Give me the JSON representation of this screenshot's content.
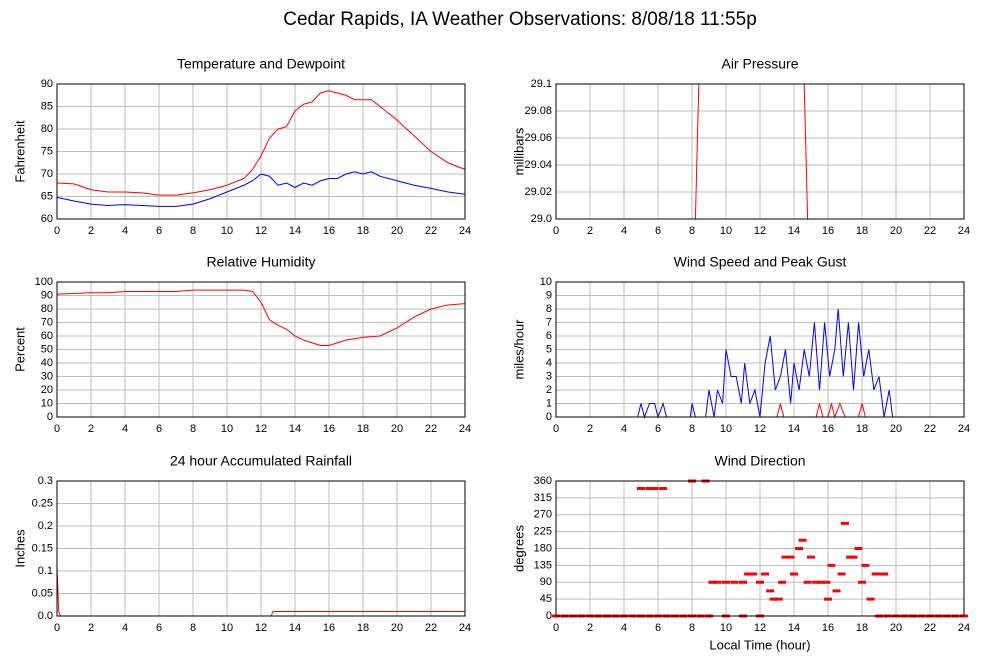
{
  "title": "Cedar Rapids, IA Weather Observations: 8/08/18 11:55p",
  "chart_data": [
    {
      "type": "line",
      "title": "Temperature and Dewpoint",
      "ylabel": "Fahrenheit",
      "xlim": [
        0,
        24
      ],
      "xticks": [
        0,
        2,
        4,
        6,
        8,
        10,
        12,
        14,
        16,
        18,
        20,
        22,
        24
      ],
      "ylim": [
        60,
        90
      ],
      "yticks": [
        60,
        65,
        70,
        75,
        80,
        85,
        90
      ],
      "grid": true,
      "series": [
        {
          "color": "#ff0000",
          "x": [
            0,
            1,
            2,
            3,
            4,
            5,
            6,
            7,
            8,
            9,
            10,
            11,
            11.5,
            12,
            12.5,
            13,
            13.5,
            14,
            14.5,
            15,
            15.5,
            16,
            16.5,
            17,
            17.5,
            18,
            18.5,
            19,
            20,
            21,
            22,
            23,
            24
          ],
          "values": [
            68,
            67.8,
            66.5,
            66,
            66,
            65.8,
            65.3,
            65.3,
            65.8,
            66.5,
            67.5,
            69,
            71,
            74,
            78,
            80,
            80.5,
            84,
            85.5,
            86,
            88,
            88.5,
            88,
            87.5,
            86.5,
            86.5,
            86.5,
            85,
            82,
            78.5,
            75,
            72.5,
            71
          ]
        },
        {
          "color": "#0000ff",
          "x": [
            0,
            1,
            2,
            3,
            4,
            5,
            6,
            7,
            8,
            9,
            10,
            11,
            11.5,
            12,
            12.5,
            13,
            13.5,
            14,
            14.5,
            15,
            15.5,
            16,
            16.5,
            17,
            17.5,
            18,
            18.5,
            19,
            20,
            21,
            22,
            23,
            24
          ],
          "values": [
            64.8,
            64,
            63.3,
            63,
            63.2,
            63,
            62.8,
            62.8,
            63.3,
            64.5,
            66,
            67.5,
            68.5,
            70,
            69.5,
            67.5,
            68,
            67,
            68,
            67.5,
            68.5,
            69,
            69,
            70,
            70.5,
            70,
            70.5,
            69.5,
            68.5,
            67.5,
            66.8,
            66,
            65.5
          ]
        }
      ]
    },
    {
      "type": "line",
      "title": "Air Pressure",
      "ylabel": "millibars",
      "xlim": [
        0,
        24
      ],
      "xticks": [
        0,
        2,
        4,
        6,
        8,
        10,
        12,
        14,
        16,
        18,
        20,
        22,
        24
      ],
      "ylim": [
        29,
        29.1
      ],
      "yticks": [
        {
          "value": 29,
          "label": "29.0"
        },
        29.02,
        29.04,
        29.06,
        29.08,
        29.1
      ],
      "grid": true,
      "series": [
        {
          "color": "#ff0000",
          "x": [
            0,
            8.2,
            8.4,
            14.6,
            14.8,
            24
          ],
          "values": [
            29,
            29,
            29.1,
            29.1,
            29,
            29
          ]
        }
      ]
    },
    {
      "type": "line",
      "title": "Relative Humidity",
      "ylabel": "Percent",
      "xlim": [
        0,
        24
      ],
      "xticks": [
        0,
        2,
        4,
        6,
        8,
        10,
        12,
        14,
        16,
        18,
        20,
        22,
        24
      ],
      "ylim": [
        0,
        100
      ],
      "yticks": [
        0,
        10,
        20,
        30,
        40,
        50,
        60,
        70,
        80,
        90,
        100
      ],
      "grid": true,
      "series": [
        {
          "color": "#ff0000",
          "x": [
            0,
            1,
            2,
            3,
            4,
            5,
            6,
            7,
            8,
            9,
            10,
            11,
            11.5,
            12,
            12.5,
            13,
            13.5,
            14,
            14.5,
            15,
            15.5,
            16,
            16.5,
            17,
            18,
            19,
            20,
            21,
            22,
            23,
            24
          ],
          "values": [
            91,
            91.5,
            92,
            92,
            93,
            93,
            93,
            93,
            94,
            94,
            94,
            94,
            93,
            85,
            72,
            68,
            65,
            60,
            57,
            55,
            53,
            53,
            55,
            57,
            59,
            60,
            66,
            74,
            80,
            83,
            84
          ]
        }
      ]
    },
    {
      "type": "line",
      "title": "Wind Speed and Peak Gust",
      "ylabel": "miles/hour",
      "xlim": [
        0,
        24
      ],
      "xticks": [
        0,
        2,
        4,
        6,
        8,
        10,
        12,
        14,
        16,
        18,
        20,
        22,
        24
      ],
      "ylim": [
        0,
        10
      ],
      "yticks": [
        0,
        1,
        2,
        3,
        4,
        5,
        6,
        7,
        8,
        9,
        10
      ],
      "grid": true,
      "series": [
        {
          "color": "#0000ff",
          "x": [
            0,
            4.8,
            5,
            5.2,
            5.5,
            5.8,
            6,
            6.3,
            6.5,
            7.9,
            8,
            8.2,
            8.8,
            9,
            9.3,
            9.5,
            9.8,
            10,
            10.3,
            10.6,
            10.9,
            11.1,
            11.4,
            11.7,
            12,
            12.3,
            12.6,
            12.9,
            13.2,
            13.5,
            13.8,
            14,
            14.3,
            14.6,
            14.9,
            15.2,
            15.5,
            15.8,
            16.1,
            16.4,
            16.6,
            16.9,
            17.2,
            17.5,
            17.8,
            18.1,
            18.4,
            18.7,
            19,
            19.3,
            19.6,
            19.8,
            24
          ],
          "values": [
            0,
            0,
            1,
            0,
            1,
            1,
            0,
            1,
            0,
            0,
            1,
            0,
            0,
            2,
            0,
            2,
            1,
            5,
            3,
            3,
            1,
            4,
            1,
            2,
            0,
            4,
            6,
            2,
            3,
            5,
            1,
            4,
            2,
            5,
            3,
            7,
            2,
            7,
            3,
            5,
            8,
            3,
            7,
            2,
            7,
            3,
            5,
            2,
            3,
            0,
            2,
            0,
            0
          ]
        },
        {
          "color": "#ff0000",
          "x": [
            0,
            13,
            13.2,
            13.4,
            15.3,
            15.5,
            15.7,
            16,
            16.2,
            16.4,
            16.7,
            17,
            17.8,
            18,
            18.2,
            24
          ],
          "values": [
            0,
            0,
            1,
            0,
            0,
            1,
            0,
            0,
            1,
            0,
            1,
            0,
            0,
            1,
            0,
            0
          ]
        }
      ]
    },
    {
      "type": "line",
      "title": "24 hour Accumulated Rainfall",
      "ylabel": "Inches",
      "xlim": [
        0,
        24
      ],
      "xticks": [
        0,
        2,
        4,
        6,
        8,
        10,
        12,
        14,
        16,
        18,
        20,
        22,
        24
      ],
      "ylim": [
        0,
        0.3
      ],
      "yticks": [
        {
          "value": 0,
          "label": "0.0"
        },
        0.05,
        0.1,
        0.15,
        0.2,
        0.25,
        0.3
      ],
      "grid": true,
      "series": [
        {
          "color": "#ff0000",
          "x": [
            0,
            0.1,
            0.2,
            12.6,
            12.7,
            24
          ],
          "values": [
            0.11,
            0.01,
            0,
            0,
            0.01,
            0.01
          ]
        }
      ]
    },
    {
      "type": "scatter",
      "title": "Wind Direction",
      "ylabel": "degrees",
      "xlabel": "Local Time (hour)",
      "xlim": [
        0,
        24
      ],
      "xticks": [
        0,
        2,
        4,
        6,
        8,
        10,
        12,
        14,
        16,
        18,
        20,
        22,
        24
      ],
      "ylim": [
        0,
        360
      ],
      "yticks": [
        0,
        45,
        90,
        135,
        180,
        225,
        270,
        315,
        360
      ],
      "grid": true,
      "series": [
        {
          "color": "#ff0000",
          "x": [
            0,
            0.5,
            1,
            1.5,
            2,
            2.5,
            3,
            3.5,
            4,
            4.5,
            5,
            5.5,
            6,
            6.5,
            7,
            7.5,
            8,
            8.5,
            9,
            5,
            5.5,
            5.8,
            6.3,
            8,
            8.8,
            9.2,
            9.5,
            10,
            10.5,
            11,
            11.3,
            11.6,
            12,
            12.3,
            12.6,
            12.8,
            13.1,
            13.3,
            13.5,
            13.8,
            14,
            14.3,
            14.5,
            14.8,
            15,
            15.3,
            15.6,
            15.9,
            16,
            16.2,
            16.5,
            16.8,
            17,
            17.3,
            17.5,
            17.8,
            18,
            18.2,
            18.5,
            18.8,
            19,
            19.3,
            10,
            11,
            12,
            19,
            19.5,
            20,
            20.5,
            21,
            21.5,
            22,
            22.5,
            23,
            23.5,
            24
          ],
          "values": [
            0,
            0,
            0,
            0,
            0,
            0,
            0,
            0,
            0,
            0,
            0,
            0,
            0,
            0,
            0,
            0,
            0,
            0,
            0,
            340,
            340,
            340,
            340,
            360,
            360,
            90,
            90,
            90,
            90,
            90,
            112,
            112,
            90,
            112,
            67,
            45,
            45,
            90,
            157,
            157,
            112,
            180,
            202,
            90,
            157,
            90,
            90,
            90,
            45,
            135,
            67,
            112,
            247,
            157,
            157,
            180,
            90,
            135,
            45,
            112,
            112,
            112,
            0,
            0,
            0,
            0,
            0,
            0,
            0,
            0,
            0,
            0,
            0,
            0,
            0,
            0
          ]
        }
      ]
    }
  ]
}
